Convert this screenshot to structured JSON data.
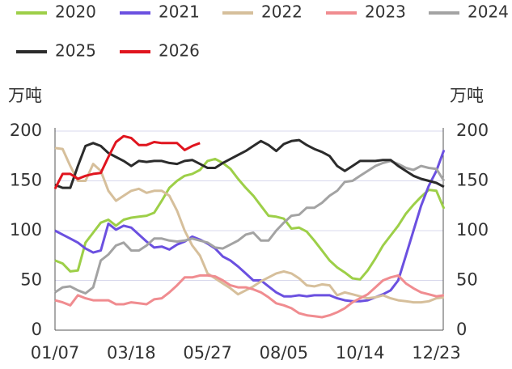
{
  "chart_data": {
    "type": "line",
    "y_label": "万吨",
    "y2_label": "万吨",
    "categories": [
      "01/07",
      null,
      null,
      null,
      null,
      null,
      null,
      null,
      null,
      null,
      "03/18",
      null,
      null,
      null,
      null,
      null,
      null,
      null,
      null,
      null,
      "05/27",
      null,
      null,
      null,
      null,
      null,
      null,
      null,
      null,
      null,
      "08/05",
      null,
      null,
      null,
      null,
      null,
      null,
      null,
      null,
      null,
      "10/14",
      null,
      null,
      null,
      null,
      null,
      null,
      null,
      null,
      null,
      "12/23",
      null
    ],
    "ylim": [
      0,
      200
    ],
    "yticks": [
      0,
      50,
      100,
      150,
      200
    ],
    "y2lim": [
      0,
      200
    ],
    "y2ticks": [
      0,
      50,
      100,
      150,
      200
    ],
    "grid": true,
    "legend": "top",
    "series": [
      {
        "name": "2020",
        "color": "#9dcf48",
        "values": [
          70,
          67,
          59,
          60,
          88,
          98,
          108,
          111,
          105,
          111,
          113,
          114,
          115,
          118,
          130,
          143,
          150,
          155,
          157,
          161,
          170,
          172,
          168,
          162,
          152,
          143,
          135,
          125,
          115,
          114,
          112,
          102,
          103,
          99,
          90,
          80,
          70,
          63,
          58,
          52,
          51,
          60,
          72,
          85,
          95,
          105,
          117,
          126,
          134,
          141,
          140,
          122
        ]
      },
      {
        "name": "2021",
        "color": "#6b50e0",
        "values": [
          100,
          96,
          92,
          88,
          82,
          78,
          80,
          107,
          101,
          105,
          103,
          96,
          89,
          83,
          84,
          81,
          86,
          89,
          94,
          91,
          87,
          82,
          74,
          70,
          64,
          57,
          50,
          50,
          44,
          38,
          34,
          34,
          35,
          34,
          35,
          35,
          35,
          32,
          30,
          29,
          29,
          30,
          33,
          36,
          40,
          50,
          75,
          100,
          125,
          145,
          160,
          181
        ]
      },
      {
        "name": "2022",
        "color": "#d6bf9b",
        "values": [
          183,
          182,
          165,
          150,
          150,
          167,
          160,
          140,
          130,
          135,
          140,
          142,
          138,
          140,
          140,
          135,
          120,
          100,
          85,
          75,
          57,
          52,
          47,
          42,
          36,
          40,
          44,
          49,
          53,
          57,
          59,
          57,
          52,
          45,
          44,
          46,
          45,
          35,
          38,
          36,
          34,
          32,
          33,
          35,
          32,
          30,
          29,
          28,
          28,
          29,
          32,
          33
        ]
      },
      {
        "name": "2023",
        "color": "#f08c90",
        "values": [
          30,
          28,
          25,
          35,
          32,
          30,
          30,
          30,
          26,
          26,
          28,
          27,
          26,
          31,
          32,
          38,
          45,
          53,
          53,
          55,
          55,
          54,
          50,
          45,
          43,
          43,
          41,
          38,
          33,
          27,
          25,
          22,
          17,
          15,
          14,
          13,
          15,
          18,
          22,
          28,
          32,
          36,
          43,
          50,
          53,
          55,
          47,
          42,
          38,
          36,
          34,
          35
        ]
      },
      {
        "name": "2024",
        "color": "#a3a3a3",
        "values": [
          38,
          43,
          44,
          40,
          37,
          43,
          70,
          76,
          85,
          88,
          80,
          80,
          85,
          92,
          92,
          90,
          89,
          90,
          92,
          90,
          88,
          83,
          82,
          86,
          90,
          96,
          98,
          90,
          90,
          100,
          108,
          115,
          116,
          123,
          123,
          128,
          135,
          140,
          149,
          150,
          155,
          160,
          165,
          168,
          170,
          167,
          163,
          161,
          165,
          163,
          162,
          150
        ]
      },
      {
        "name": "2025",
        "color": "#2b2b2b",
        "values": [
          146,
          143,
          143,
          165,
          185,
          188,
          185,
          178,
          174,
          170,
          165,
          170,
          169,
          170,
          170,
          168,
          167,
          170,
          171,
          167,
          163,
          163,
          168,
          172,
          176,
          180,
          185,
          190,
          186,
          180,
          187,
          190,
          191,
          186,
          182,
          179,
          175,
          165,
          160,
          165,
          170,
          170,
          170,
          171,
          171,
          165,
          160,
          155,
          152,
          150,
          148,
          144
        ]
      },
      {
        "name": "2026",
        "color": "#e0141e",
        "values": [
          142,
          157,
          157,
          152,
          155,
          157,
          158,
          174,
          189,
          195,
          193,
          186,
          186,
          189,
          188,
          188,
          188,
          181,
          185,
          188,
          null,
          null,
          null,
          null,
          null,
          null,
          null,
          null,
          null,
          null,
          null,
          null,
          null,
          null,
          null,
          null,
          null,
          null,
          null,
          null,
          null,
          null,
          null,
          null,
          null,
          null,
          null,
          null,
          null,
          null,
          null,
          null
        ]
      }
    ]
  }
}
